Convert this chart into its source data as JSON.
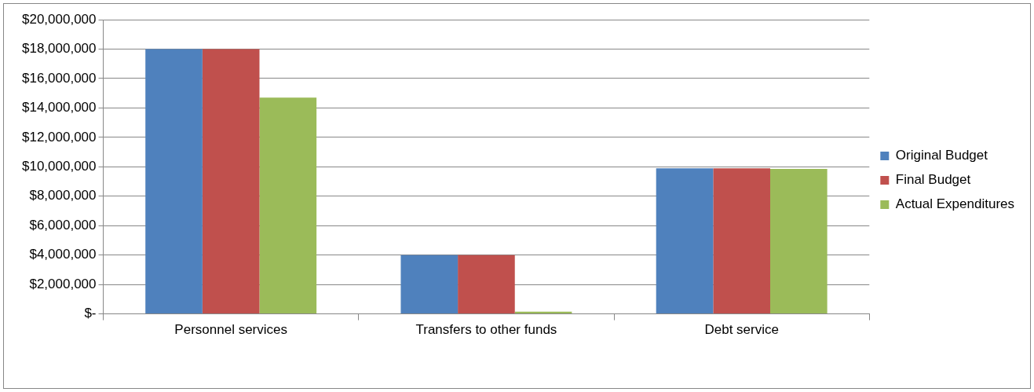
{
  "chart_data": {
    "type": "bar",
    "categories": [
      "Personnel services",
      "Transfers to other funds",
      "Debt service"
    ],
    "series": [
      {
        "name": "Original Budget",
        "color": "#4f81bd",
        "values": [
          18000000,
          4000000,
          9900000
        ]
      },
      {
        "name": "Final Budget",
        "color": "#c0504d",
        "values": [
          18000000,
          4000000,
          9900000
        ]
      },
      {
        "name": "Actual Expenditures",
        "color": "#9bbb59",
        "values": [
          14700000,
          150000,
          9850000
        ]
      }
    ],
    "ylim": [
      0,
      20000000
    ],
    "yticks": [
      {
        "value": 0,
        "label": "$-"
      },
      {
        "value": 2000000,
        "label": "$2,000,000"
      },
      {
        "value": 4000000,
        "label": "$4,000,000"
      },
      {
        "value": 6000000,
        "label": "$6,000,000"
      },
      {
        "value": 8000000,
        "label": "$8,000,000"
      },
      {
        "value": 10000000,
        "label": "$10,000,000"
      },
      {
        "value": 12000000,
        "label": "$12,000,000"
      },
      {
        "value": 14000000,
        "label": "$14,000,000"
      },
      {
        "value": 16000000,
        "label": "$16,000,000"
      },
      {
        "value": 18000000,
        "label": "$18,000,000"
      },
      {
        "value": 20000000,
        "label": "$20,000,000"
      }
    ],
    "grid": "y",
    "legend": "right"
  }
}
